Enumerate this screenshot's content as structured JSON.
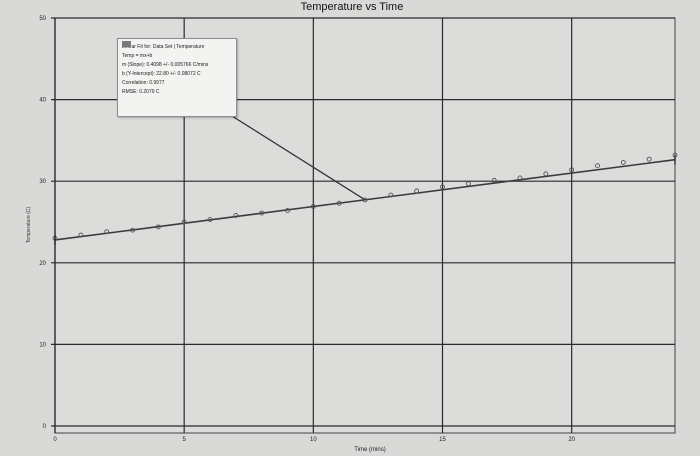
{
  "chart_data": {
    "type": "scatter",
    "title": "Temperature vs Time",
    "xlabel": "Time (mins)",
    "ylabel": "Temperature (C)",
    "xlim": [
      0,
      24
    ],
    "ylim": [
      0,
      50
    ],
    "x_ticks": [
      0,
      5,
      10,
      15,
      20
    ],
    "y_ticks": [
      0,
      10,
      20,
      30,
      40,
      50
    ],
    "grid": true,
    "legend": "none",
    "series": [
      {
        "name": "Temperature",
        "points": [
          [
            0,
            23.0
          ],
          [
            1,
            23.4
          ],
          [
            2,
            23.8
          ],
          [
            3,
            24.0
          ],
          [
            4,
            24.4
          ],
          [
            5,
            25.0
          ],
          [
            6,
            25.3
          ],
          [
            7,
            25.8
          ],
          [
            8,
            26.1
          ],
          [
            9,
            26.4
          ],
          [
            10,
            26.9
          ],
          [
            11,
            27.3
          ],
          [
            12,
            27.7
          ],
          [
            13,
            28.3
          ],
          [
            14,
            28.8
          ],
          [
            15,
            29.3
          ],
          [
            16,
            29.7
          ],
          [
            17,
            30.1
          ],
          [
            18,
            30.4
          ],
          [
            19,
            30.9
          ],
          [
            20,
            31.4
          ],
          [
            21,
            31.9
          ],
          [
            22,
            32.3
          ],
          [
            23,
            32.7
          ],
          [
            24,
            33.2
          ]
        ]
      }
    ],
    "fit": {
      "slope": 0.4098,
      "intercept": 22.8,
      "x_range": [
        0,
        24
      ],
      "annotation_x": 12
    }
  },
  "fit_box": {
    "lines": [
      "Linear Fit for: Data Set | Temperature",
      "Temp = mx+b",
      "m (Slope): 0.4098 +/- 0.005766 C/mins",
      "b (Y-Intercept): 22.80 +/- 0.08072 C",
      "Correlation: 0.9977",
      "RMSE: 0.2079 C"
    ]
  },
  "colors": {
    "paper": "#d9d9d7",
    "grid": "#2a2a2a",
    "marker": "#555555",
    "fit_line": "#3a3a3a"
  }
}
